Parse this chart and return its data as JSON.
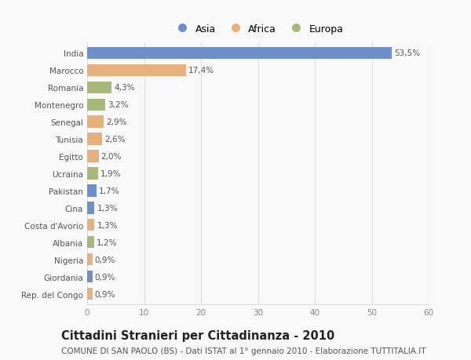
{
  "countries": [
    "India",
    "Marocco",
    "Romania",
    "Montenegro",
    "Senegal",
    "Tunisia",
    "Egitto",
    "Ucraina",
    "Pakistan",
    "Cina",
    "Costa d'Avorio",
    "Albania",
    "Nigeria",
    "Giordania",
    "Rep. del Congo"
  ],
  "values": [
    53.5,
    17.4,
    4.3,
    3.2,
    2.9,
    2.6,
    2.0,
    1.9,
    1.7,
    1.3,
    1.3,
    1.2,
    0.9,
    0.9,
    0.9
  ],
  "labels": [
    "53,5%",
    "17,4%",
    "4,3%",
    "3,2%",
    "2,9%",
    "2,6%",
    "2,0%",
    "1,9%",
    "1,7%",
    "1,3%",
    "1,3%",
    "1,2%",
    "0,9%",
    "0,9%",
    "0,9%"
  ],
  "continents": [
    "Asia",
    "Africa",
    "Europa",
    "Europa",
    "Africa",
    "Africa",
    "Africa",
    "Europa",
    "Asia",
    "Asia",
    "Africa",
    "Europa",
    "Africa",
    "Asia",
    "Africa"
  ],
  "colors": {
    "Asia": "#6e8fc9",
    "Africa": "#e8b07a",
    "Europa": "#a8b87a"
  },
  "title": "Cittadini Stranieri per Cittadinanza - 2010",
  "subtitle": "COMUNE DI SAN PAOLO (BS) - Dati ISTAT al 1° gennaio 2010 - Elaborazione TUTTITALIA.IT",
  "xlim": [
    0,
    60
  ],
  "xticks": [
    0,
    10,
    20,
    30,
    40,
    50,
    60
  ],
  "background_color": "#f9f9f9",
  "grid_color": "#dddddd",
  "bar_height": 0.7,
  "label_fontsize": 7.5,
  "tick_fontsize": 7.5,
  "title_fontsize": 10.5,
  "subtitle_fontsize": 7.5
}
